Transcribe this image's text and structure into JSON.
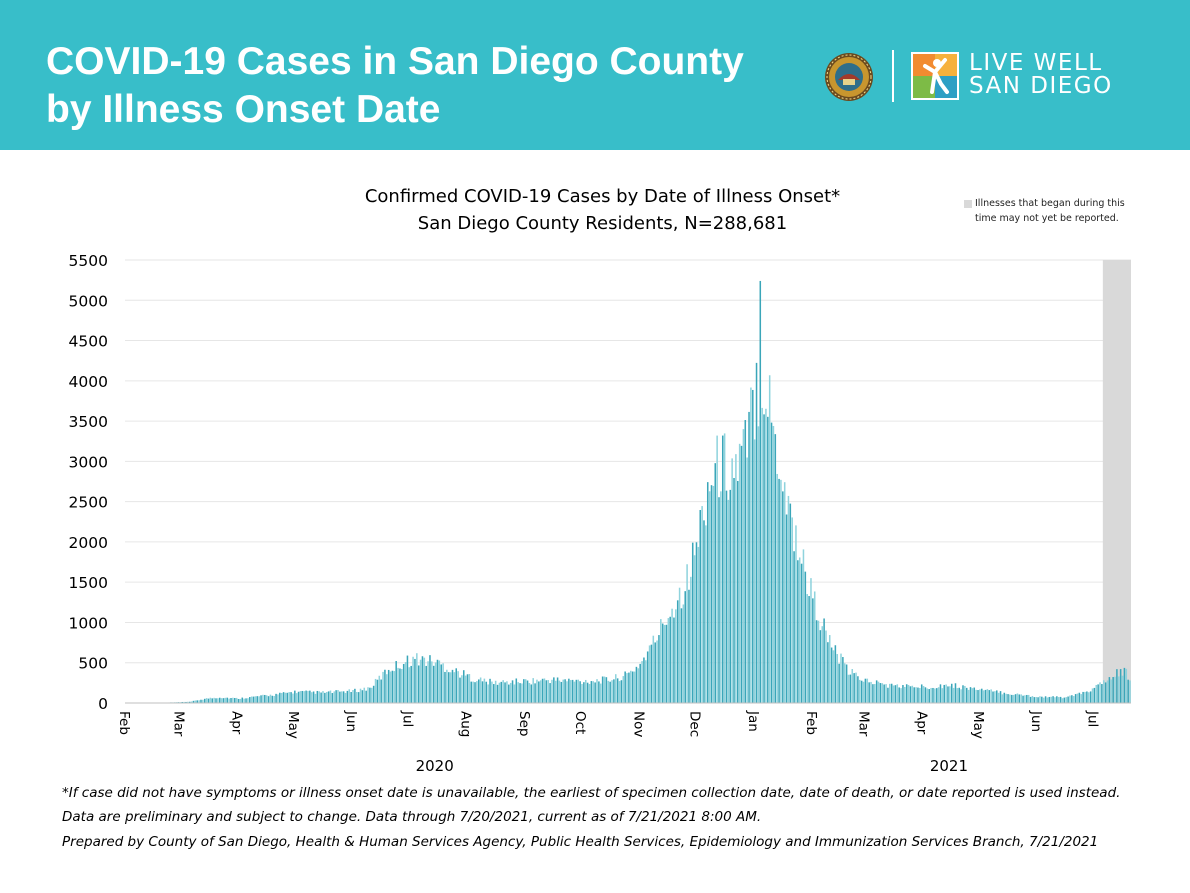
{
  "header": {
    "title_line1": "COVID-19 Cases in San Diego County",
    "title_line2": "by Illness Onset Date",
    "logo_text_line1": "LIVE WELL",
    "logo_text_line2": "SAN DIEGO"
  },
  "colors": {
    "banner": "#38bec9",
    "bar": "#3aa6b9",
    "bar_highlight": "#8fd3dd",
    "shade": "#d9d9d9",
    "gridline": "#e6e6e6"
  },
  "icons": {
    "seal": "county-seal-icon",
    "logo": "live-well-figure-icon"
  },
  "legend": {
    "line1": "Illnesses that began during this",
    "line2": "time may not yet be reported."
  },
  "footnotes": {
    "line1": "*If case did not have symptoms or illness onset date is unavailable, the earliest of specimen collection date, date of death, or date reported is used instead.",
    "line2": "Data are preliminary and subject to change. Data through 7/20/2021, current as of 7/21/2021 8:00 AM.",
    "line3": "Prepared by County of San Diego, Health & Human Services Agency, Public Health Services, Epidemiology and Immunization Services Branch, 7/21/2021"
  },
  "chart_data": {
    "type": "bar",
    "title": "Confirmed COVID-19 Cases by Date of Illness Onset*",
    "subtitle": "San Diego County Residents, N=288,681",
    "x_range": [
      "2020-02-01",
      "2021-07-20"
    ],
    "ylim": [
      0,
      5500
    ],
    "y_ticks": [
      0,
      500,
      1000,
      1500,
      2000,
      2500,
      3000,
      3500,
      4000,
      4500,
      5000,
      5500
    ],
    "x_tick_labels": [
      "Feb",
      "Mar",
      "Apr",
      "May",
      "Jun",
      "Jul",
      "Aug",
      "Sep",
      "Oct",
      "Nov",
      "Dec",
      "Jan",
      "Feb",
      "Mar",
      "Apr",
      "May",
      "Jun",
      "Jul"
    ],
    "x_tick_dates": [
      "2020-02-01",
      "2020-03-01",
      "2020-04-01",
      "2020-05-01",
      "2020-06-01",
      "2020-07-01",
      "2020-08-01",
      "2020-09-01",
      "2020-10-01",
      "2020-11-01",
      "2020-12-01",
      "2021-01-01",
      "2021-02-01",
      "2021-03-01",
      "2021-04-01",
      "2021-05-01",
      "2021-06-01",
      "2021-07-01"
    ],
    "year_labels": [
      {
        "text": "2020",
        "date": "2020-07-15"
      },
      {
        "text": "2021",
        "date": "2021-04-15"
      }
    ],
    "shaded_region": {
      "start": "2021-07-06",
      "end": "2021-07-20",
      "label": "Illnesses that began during this time may not yet be reported."
    },
    "grid": true,
    "legend": "top-right",
    "series": [
      {
        "values_by_date": [
          [
            "2020-02-01",
            0
          ],
          [
            "2020-02-15",
            2
          ],
          [
            "2020-03-01",
            10
          ],
          [
            "2020-03-07",
            20
          ],
          [
            "2020-03-15",
            60
          ],
          [
            "2020-03-22",
            75
          ],
          [
            "2020-04-01",
            60
          ],
          [
            "2020-04-08",
            80
          ],
          [
            "2020-04-20",
            110
          ],
          [
            "2020-05-01",
            150
          ],
          [
            "2020-05-15",
            140
          ],
          [
            "2020-06-01",
            160
          ],
          [
            "2020-06-10",
            200
          ],
          [
            "2020-06-15",
            330
          ],
          [
            "2020-06-20",
            450
          ],
          [
            "2020-06-30",
            560
          ],
          [
            "2020-07-05",
            590
          ],
          [
            "2020-07-15",
            550
          ],
          [
            "2020-07-25",
            430
          ],
          [
            "2020-08-05",
            320
          ],
          [
            "2020-08-15",
            270
          ],
          [
            "2020-09-01",
            290
          ],
          [
            "2020-09-15",
            310
          ],
          [
            "2020-10-01",
            290
          ],
          [
            "2020-10-15",
            310
          ],
          [
            "2020-10-25",
            370
          ],
          [
            "2020-11-01",
            520
          ],
          [
            "2020-11-07",
            750
          ],
          [
            "2020-11-14",
            1100
          ],
          [
            "2020-11-20",
            1350
          ],
          [
            "2020-11-27",
            1700
          ],
          [
            "2020-12-01",
            2100
          ],
          [
            "2020-12-07",
            2900
          ],
          [
            "2020-12-14",
            3200
          ],
          [
            "2020-12-21",
            3100
          ],
          [
            "2020-12-28",
            3400
          ],
          [
            "2021-01-02",
            4300
          ],
          [
            "2021-01-05",
            4500
          ],
          [
            "2021-01-10",
            3800
          ],
          [
            "2021-01-16",
            3000
          ],
          [
            "2021-01-23",
            2200
          ],
          [
            "2021-02-01",
            1400
          ],
          [
            "2021-02-10",
            800
          ],
          [
            "2021-02-20",
            420
          ],
          [
            "2021-03-01",
            300
          ],
          [
            "2021-03-15",
            230
          ],
          [
            "2021-04-01",
            215
          ],
          [
            "2021-04-15",
            240
          ],
          [
            "2021-05-01",
            180
          ],
          [
            "2021-05-15",
            130
          ],
          [
            "2021-06-01",
            85
          ],
          [
            "2021-06-15",
            75
          ],
          [
            "2021-06-25",
            130
          ],
          [
            "2021-07-01",
            200
          ],
          [
            "2021-07-08",
            300
          ],
          [
            "2021-07-15",
            430
          ],
          [
            "2021-07-18",
            400
          ],
          [
            "2021-07-20",
            260
          ]
        ],
        "peak_value": 5240,
        "peak_date": "2021-01-04"
      }
    ]
  }
}
